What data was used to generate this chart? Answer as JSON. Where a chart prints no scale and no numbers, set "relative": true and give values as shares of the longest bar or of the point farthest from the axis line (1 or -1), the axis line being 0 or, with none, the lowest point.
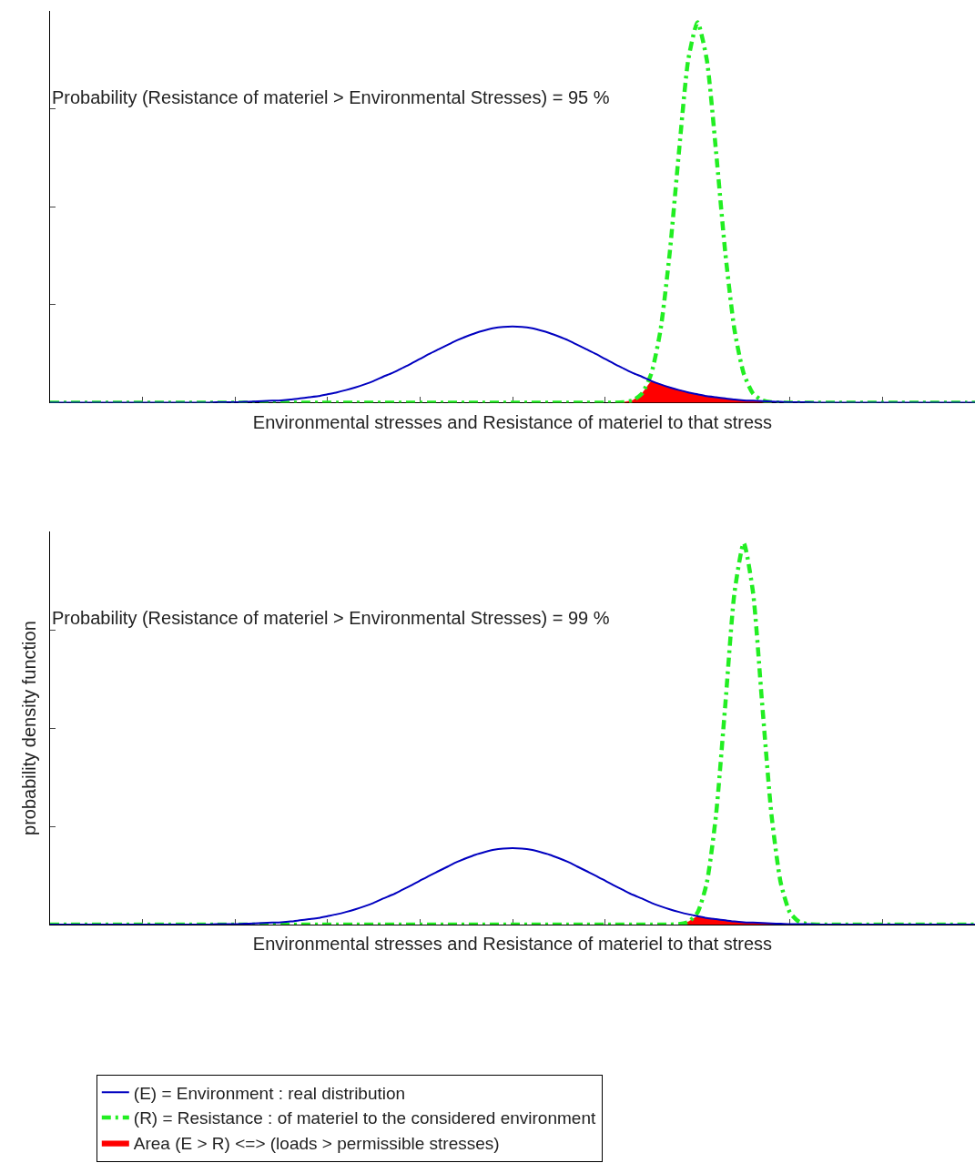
{
  "chart_data": [
    {
      "type": "line",
      "relative": true,
      "tick_labels": false,
      "xlabel": "Environmental stresses and Resistance of materiel to that stress",
      "annotations": [
        "Probability (Resistance of materiel > Environmental Stresses) = 95 %"
      ],
      "categories": [
        null,
        null,
        null,
        null,
        null,
        null,
        null,
        null,
        null,
        null,
        null,
        null,
        null,
        null,
        null,
        null,
        null,
        null,
        null,
        null,
        null,
        null,
        null,
        null,
        null,
        null,
        null,
        null,
        null,
        null,
        null,
        null,
        null,
        null,
        null,
        null,
        null,
        null,
        null,
        null,
        null,
        null,
        null,
        null,
        null,
        null,
        null,
        null,
        null,
        null,
        null,
        null,
        null,
        null,
        null,
        null,
        null,
        null,
        null,
        null,
        null,
        null,
        null,
        null,
        null,
        null,
        null,
        null,
        null,
        null,
        null,
        null,
        null,
        null,
        null,
        null,
        null,
        null,
        null,
        null,
        null,
        null,
        null,
        null,
        null,
        null,
        null,
        null,
        null,
        null,
        null,
        null,
        null,
        null,
        null,
        null,
        null,
        null,
        null,
        null,
        null
      ],
      "series": [
        {
          "type": "area",
          "color": "#ff0000",
          "values": [
            null,
            null,
            null,
            null,
            null,
            null,
            null,
            null,
            null,
            null,
            null,
            null,
            null,
            null,
            null,
            null,
            null,
            null,
            null,
            null,
            null,
            null,
            null,
            null,
            null,
            null,
            null,
            null,
            null,
            null,
            null,
            null,
            null,
            null,
            null,
            null,
            null,
            null,
            null,
            null,
            null,
            null,
            null,
            null,
            null,
            null,
            null,
            null,
            null,
            null,
            null,
            null,
            null,
            null,
            null,
            null,
            null,
            null,
            null,
            null,
            null,
            null,
            0.001,
            0.006,
            0.024,
            0.057,
            0.048,
            0.04,
            0.033,
            0.027,
            0.022,
            0.017,
            0.014,
            0.011,
            0.008,
            0.006,
            0.005,
            0.004,
            0.001,
            null,
            null,
            null,
            null,
            null,
            null,
            null,
            null,
            null,
            null,
            null,
            null,
            null,
            null,
            null,
            null,
            null,
            null,
            null,
            null,
            null,
            null
          ]
        },
        {
          "color": "#22ee22",
          "line_style": "dashed",
          "values": [
            0,
            0,
            0,
            0,
            0,
            0,
            0,
            0,
            0,
            0,
            0,
            0,
            0,
            0,
            0,
            0,
            0,
            0,
            0,
            0,
            0,
            0,
            0,
            0,
            0,
            0,
            0,
            0,
            0,
            0,
            0,
            0,
            0,
            0,
            0,
            0,
            0,
            0,
            0,
            0,
            0,
            0,
            0,
            0,
            0,
            0,
            0,
            0,
            0,
            0,
            0,
            0,
            0,
            0,
            0,
            0,
            0,
            0,
            0,
            0,
            0,
            0,
            0.001,
            0.006,
            0.024,
            0.076,
            0.191,
            0.395,
            0.661,
            0.902,
            1,
            0.902,
            0.661,
            0.395,
            0.191,
            0.076,
            0.024,
            0.006,
            0.001,
            0,
            0,
            0,
            0,
            0,
            0,
            0,
            0,
            0,
            0,
            0,
            0,
            0,
            0,
            0,
            0,
            0,
            0,
            0,
            0,
            0,
            0
          ]
        },
        {
          "color": "#0000c0",
          "line_style": "solid",
          "values": [
            0,
            0,
            0,
            0,
            0,
            0,
            0,
            0,
            0,
            0,
            0,
            0,
            0,
            0,
            0,
            0,
            0,
            0,
            0.001,
            0.001,
            0.001,
            0.002,
            0.003,
            0.004,
            0.005,
            0.006,
            0.008,
            0.011,
            0.014,
            0.017,
            0.022,
            0.027,
            0.033,
            0.04,
            0.048,
            0.057,
            0.068,
            0.078,
            0.09,
            0.102,
            0.115,
            0.128,
            0.14,
            0.152,
            0.164,
            0.174,
            0.183,
            0.19,
            0.196,
            0.199,
            0.2,
            0.199,
            0.196,
            0.19,
            0.183,
            0.174,
            0.164,
            0.152,
            0.14,
            0.128,
            0.115,
            0.102,
            0.09,
            0.078,
            0.068,
            0.057,
            0.048,
            0.04,
            0.033,
            0.027,
            0.022,
            0.017,
            0.014,
            0.011,
            0.008,
            0.006,
            0.005,
            0.004,
            0.003,
            0.002,
            0.001,
            0.001,
            0.001,
            0,
            0,
            0,
            0,
            0,
            0,
            0,
            0,
            0,
            0,
            0,
            0,
            0,
            0,
            0,
            0,
            0,
            0
          ]
        }
      ]
    },
    {
      "type": "line",
      "relative": true,
      "tick_labels": false,
      "legend": "bottom",
      "xlabel": "Environmental stresses and Resistance of materiel to that stress",
      "ylabel": "probability density function",
      "annotations": [
        "Probability (Resistance of materiel > Environmental Stresses) = 99 %"
      ],
      "categories": [
        null,
        null,
        null,
        null,
        null,
        null,
        null,
        null,
        null,
        null,
        null,
        null,
        null,
        null,
        null,
        null,
        null,
        null,
        null,
        null,
        null,
        null,
        null,
        null,
        null,
        null,
        null,
        null,
        null,
        null,
        null,
        null,
        null,
        null,
        null,
        null,
        null,
        null,
        null,
        null,
        null,
        null,
        null,
        null,
        null,
        null,
        null,
        null,
        null,
        null,
        null,
        null,
        null,
        null,
        null,
        null,
        null,
        null,
        null,
        null,
        null,
        null,
        null,
        null,
        null,
        null,
        null,
        null,
        null,
        null,
        null,
        null,
        null,
        null,
        null,
        null,
        null,
        null,
        null,
        null,
        null,
        null,
        null,
        null,
        null,
        null,
        null,
        null,
        null,
        null,
        null,
        null,
        null,
        null,
        null,
        null,
        null,
        null,
        null,
        null,
        null
      ],
      "series": [
        {
          "type": "area",
          "name": "Area (E > R) <=> (loads > permissible stresses)",
          "color": "#ff0000",
          "values": [
            null,
            null,
            null,
            null,
            null,
            null,
            null,
            null,
            null,
            null,
            null,
            null,
            null,
            null,
            null,
            null,
            null,
            null,
            null,
            null,
            null,
            null,
            null,
            null,
            null,
            null,
            null,
            null,
            null,
            null,
            null,
            null,
            null,
            null,
            null,
            null,
            null,
            null,
            null,
            null,
            null,
            null,
            null,
            null,
            null,
            null,
            null,
            null,
            null,
            null,
            null,
            null,
            null,
            null,
            null,
            null,
            null,
            null,
            null,
            null,
            null,
            null,
            null,
            null,
            null,
            null,
            null,
            null,
            0.001,
            0.007,
            0.022,
            0.017,
            0.014,
            0.011,
            0.008,
            0.006,
            0.005,
            0.004,
            0.003,
            0.002,
            0.001,
            0.001,
            0.001,
            null,
            null,
            null,
            null,
            null,
            null,
            null,
            null,
            null,
            null,
            null,
            null,
            null,
            null,
            null,
            null,
            null,
            null
          ]
        },
        {
          "name": "(R) = Resistance : of materiel to the considered environment",
          "color": "#22ee22",
          "line_style": "dashed",
          "values": [
            0,
            0,
            0,
            0,
            0,
            0,
            0,
            0,
            0,
            0,
            0,
            0,
            0,
            0,
            0,
            0,
            0,
            0,
            0,
            0,
            0,
            0,
            0,
            0,
            0,
            0,
            0,
            0,
            0,
            0,
            0,
            0,
            0,
            0,
            0,
            0,
            0,
            0,
            0,
            0,
            0,
            0,
            0,
            0,
            0,
            0,
            0,
            0,
            0,
            0,
            0,
            0,
            0,
            0,
            0,
            0,
            0,
            0,
            0,
            0,
            0,
            0,
            0,
            0,
            0,
            0,
            0,
            0,
            0.001,
            0.007,
            0.031,
            0.109,
            0.287,
            0.575,
            0.871,
            1,
            0.871,
            0.575,
            0.287,
            0.109,
            0.031,
            0.007,
            0.001,
            0,
            0,
            0,
            0,
            0,
            0,
            0,
            0,
            0,
            0,
            0,
            0,
            0,
            0,
            0,
            0,
            0,
            0
          ]
        },
        {
          "name": "(E) = Environment : real distribution",
          "color": "#0000c0",
          "line_style": "solid",
          "values": [
            0,
            0,
            0,
            0,
            0,
            0,
            0,
            0,
            0,
            0,
            0,
            0,
            0,
            0,
            0,
            0,
            0,
            0,
            0.001,
            0.001,
            0.001,
            0.002,
            0.003,
            0.004,
            0.005,
            0.006,
            0.008,
            0.011,
            0.014,
            0.017,
            0.022,
            0.027,
            0.033,
            0.04,
            0.048,
            0.057,
            0.068,
            0.078,
            0.09,
            0.102,
            0.115,
            0.128,
            0.14,
            0.152,
            0.164,
            0.174,
            0.183,
            0.19,
            0.196,
            0.199,
            0.2,
            0.199,
            0.196,
            0.19,
            0.183,
            0.174,
            0.164,
            0.152,
            0.14,
            0.128,
            0.115,
            0.102,
            0.09,
            0.078,
            0.068,
            0.057,
            0.048,
            0.04,
            0.033,
            0.027,
            0.022,
            0.017,
            0.014,
            0.011,
            0.008,
            0.006,
            0.005,
            0.004,
            0.003,
            0.002,
            0.001,
            0.001,
            0.001,
            0,
            0,
            0,
            0,
            0,
            0,
            0,
            0,
            0,
            0,
            0,
            0,
            0,
            0,
            0,
            0,
            0,
            0
          ]
        }
      ]
    }
  ]
}
